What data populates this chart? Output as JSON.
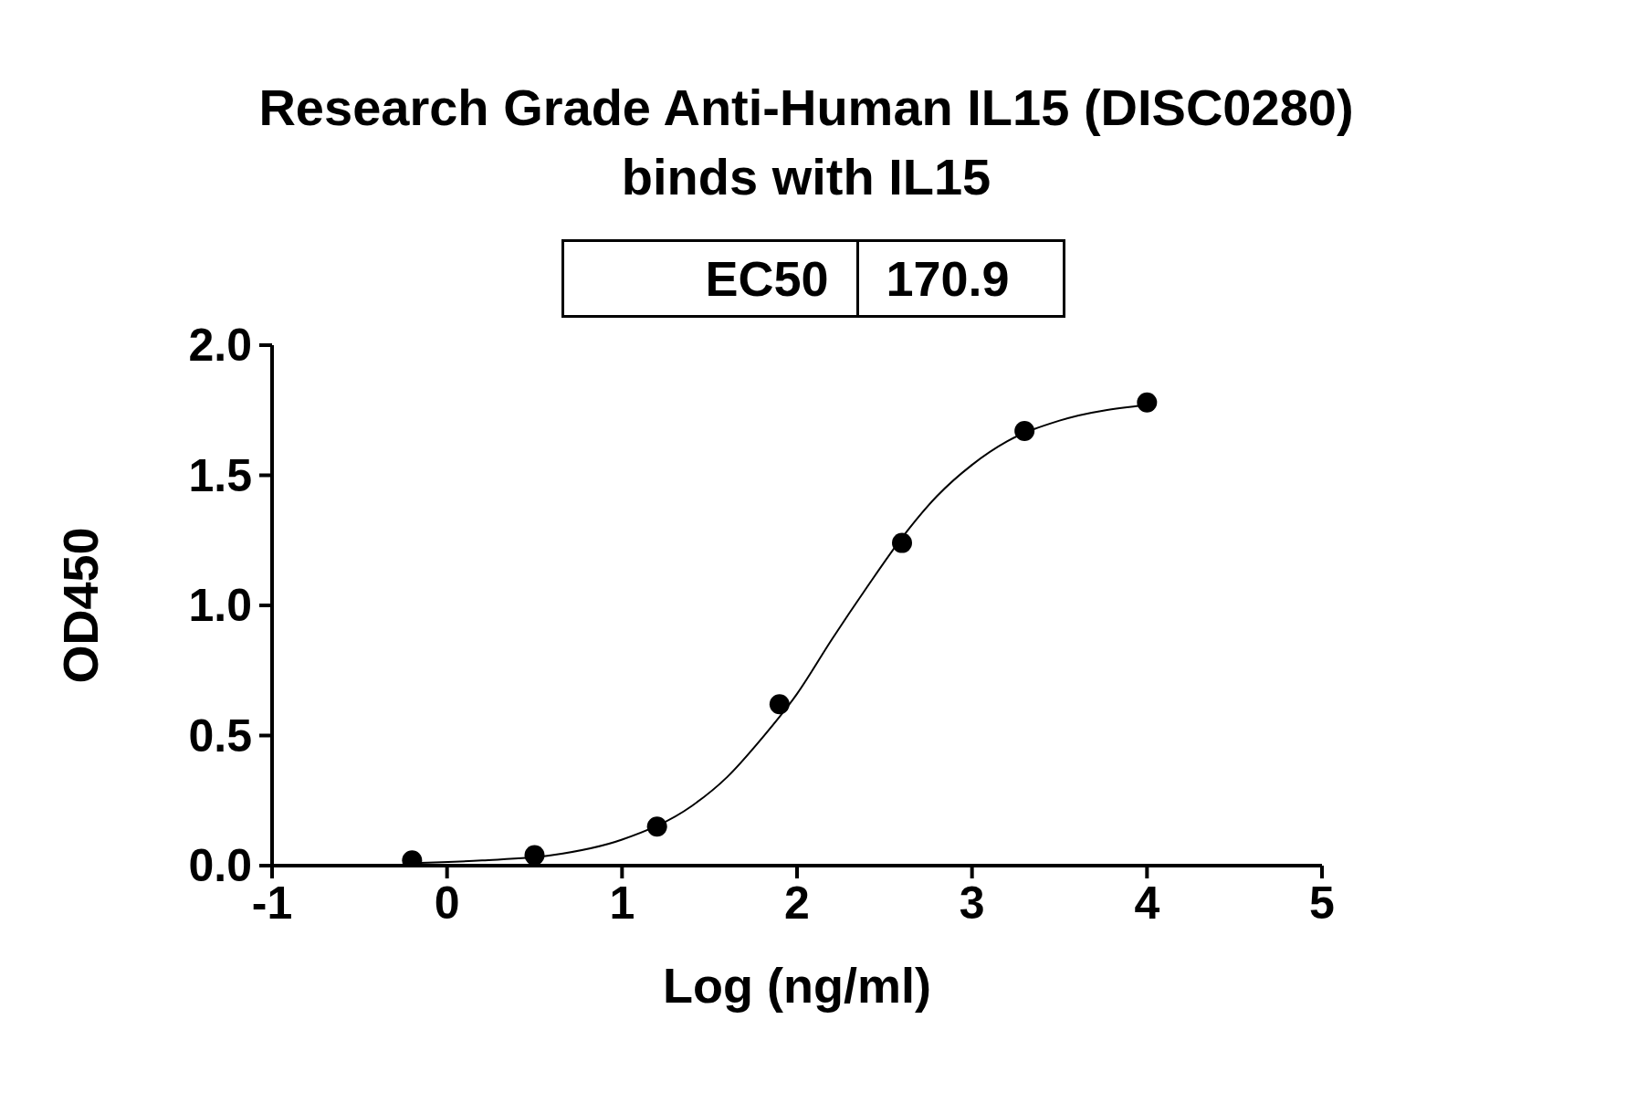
{
  "chart_data": {
    "type": "scatter",
    "title": "Research Grade Anti-Human IL15 (DISC0280)\nbinds with IL15",
    "xlabel": "Log (ng/ml)",
    "ylabel": "OD450",
    "annotations": [
      "EC50",
      "170.9"
    ],
    "series": [
      {
        "type": "scatter",
        "color": "#000000",
        "marker": "circle",
        "x": [
          -0.2,
          0.5,
          1.2,
          1.9,
          2.6,
          3.3,
          4.0
        ],
        "values": [
          0.02,
          0.04,
          0.15,
          0.62,
          1.24,
          1.67,
          1.78
        ]
      },
      {
        "type": "line",
        "color": "#000000",
        "marker": "none",
        "x": [
          -0.2,
          0.2,
          0.6,
          1.0,
          1.4,
          1.6,
          1.8,
          2.0,
          2.2,
          2.4,
          2.6,
          2.8,
          3.0,
          3.2,
          3.5,
          4.0
        ],
        "values": [
          0.01,
          0.02,
          0.04,
          0.1,
          0.23,
          0.34,
          0.49,
          0.66,
          0.87,
          1.07,
          1.26,
          1.42,
          1.54,
          1.63,
          1.71,
          1.77
        ]
      }
    ],
    "xlim": [
      -1,
      5
    ],
    "xticks": [
      -1,
      0,
      1,
      2,
      3,
      4,
      5
    ],
    "ylim": [
      0,
      2
    ],
    "yticks": [
      {
        "value": 0,
        "label": "0.0"
      },
      {
        "value": 0.5,
        "label": "0.5"
      },
      {
        "value": 1,
        "label": "1.0"
      },
      {
        "value": 1.5,
        "label": "1.5"
      },
      {
        "value": 2,
        "label": "2.0"
      }
    ],
    "grid": false,
    "legend": false
  }
}
